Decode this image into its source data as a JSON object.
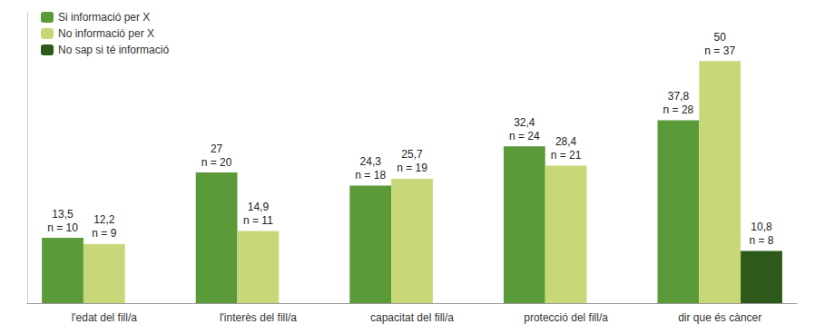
{
  "chart_data": {
    "type": "bar",
    "categories": [
      "l'edat del fill/a",
      "l'interès del fill/a",
      "capacitat del fill/a",
      "protecció del fill/a",
      "dir que és càncer"
    ],
    "series": [
      {
        "name": "Si informació per X",
        "color": "#5b9a38",
        "values": [
          13.5,
          27.0,
          24.3,
          32.4,
          37.8
        ],
        "value_labels": [
          "13,5",
          "27",
          "24,3",
          "32,4",
          "37,8"
        ],
        "n_labels": [
          "n = 10",
          "n = 20",
          "n = 18",
          "n = 24",
          "n = 28"
        ]
      },
      {
        "name": "No informació per X",
        "color": "#c8d878",
        "values": [
          12.2,
          14.9,
          25.7,
          28.4,
          50.0
        ],
        "value_labels": [
          "12,2",
          "14,9",
          "25,7",
          "28,4",
          "50"
        ],
        "n_labels": [
          "n = 9",
          "n = 11",
          "n = 19",
          "n = 21",
          "n = 37"
        ]
      },
      {
        "name": "No sap si té informació",
        "color": "#2d5a1b",
        "values": [
          null,
          null,
          null,
          null,
          10.8
        ],
        "value_labels": [
          null,
          null,
          null,
          null,
          "10,8"
        ],
        "n_labels": [
          null,
          null,
          null,
          null,
          "n = 8"
        ]
      }
    ],
    "ylim": [
      0,
      60
    ],
    "grid": false,
    "legend": "upper left",
    "data_labels": true,
    "tick_labels": "x"
  }
}
